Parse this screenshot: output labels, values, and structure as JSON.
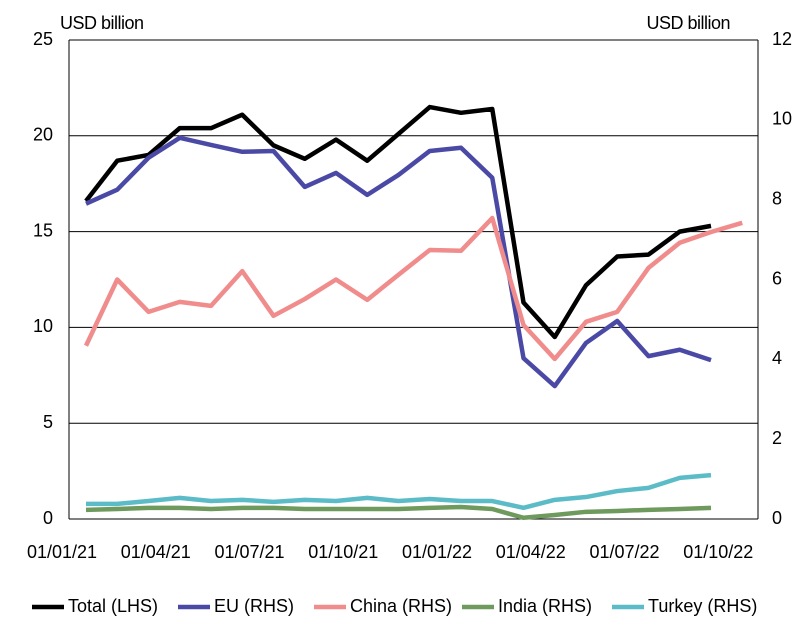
{
  "chart_data": {
    "type": "line",
    "y_label": "USD billion",
    "y2_label": "USD billion",
    "categories": [
      "01/01/21",
      null,
      null,
      "01/04/21",
      null,
      null,
      "01/07/21",
      null,
      null,
      "01/10/21",
      null,
      null,
      "01/01/22",
      null,
      null,
      "01/04/22",
      null,
      null,
      "01/07/22",
      null,
      null,
      "01/10/22"
    ],
    "series": [
      {
        "name": "Total (LHS)",
        "color": "#000000",
        "axis": "y",
        "values": [
          16.6,
          18.7,
          19.0,
          20.4,
          20.4,
          21.1,
          19.5,
          18.8,
          19.8,
          18.7,
          20.1,
          21.5,
          21.2,
          21.4,
          11.3,
          9.5,
          12.2,
          13.7,
          13.8,
          15.0,
          15.3,
          null
        ]
      },
      {
        "name": "EU (RHS)",
        "color": "#4a4aa6",
        "axis": "y2",
        "values": [
          7.9,
          8.25,
          9.05,
          9.55,
          9.37,
          9.2,
          9.22,
          8.32,
          8.67,
          8.12,
          8.62,
          9.22,
          9.3,
          8.55,
          4.03,
          3.33,
          4.41,
          4.96,
          4.08,
          4.24,
          3.98,
          null
        ]
      },
      {
        "name": "China (RHS)",
        "color": "#f08c8c",
        "axis": "y2",
        "values": [
          4.34,
          6.0,
          5.19,
          5.44,
          5.34,
          6.21,
          5.09,
          5.51,
          6.0,
          5.49,
          6.12,
          6.74,
          6.72,
          7.54,
          4.86,
          4.01,
          4.94,
          5.19,
          6.29,
          6.92,
          7.19,
          7.42
        ]
      },
      {
        "name": "India (RHS)",
        "color": "#6e9a5e",
        "axis": "y2",
        "values": [
          0.23,
          0.25,
          0.28,
          0.28,
          0.25,
          0.28,
          0.28,
          0.25,
          0.25,
          0.25,
          0.25,
          0.28,
          0.3,
          0.25,
          0.03,
          0.1,
          0.18,
          0.2,
          0.23,
          0.25,
          0.28,
          null
        ]
      },
      {
        "name": "Turkey (RHS)",
        "color": "#5bbcc8",
        "axis": "y2",
        "values": [
          0.38,
          0.38,
          0.45,
          0.53,
          0.45,
          0.48,
          0.43,
          0.48,
          0.45,
          0.53,
          0.45,
          0.5,
          0.45,
          0.45,
          0.28,
          0.48,
          0.55,
          0.7,
          0.78,
          1.03,
          1.1,
          null
        ]
      }
    ],
    "ylim": [
      0,
      25
    ],
    "yticks": [
      0,
      5,
      10,
      15,
      20,
      25
    ],
    "y2lim": [
      0,
      12
    ],
    "y2ticks": [
      0,
      2,
      4,
      6,
      8,
      10,
      12
    ],
    "grid": true,
    "legend": "bottom"
  }
}
